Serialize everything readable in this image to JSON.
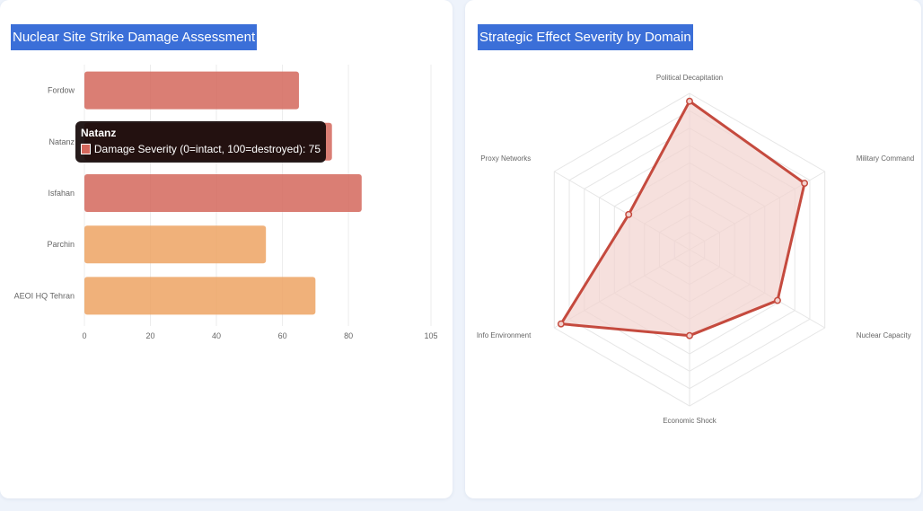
{
  "colors": {
    "page_bg": "#eef3fb",
    "title_bg": "#3b6fd8",
    "bar_red": "#d4675c",
    "bar_orange": "#eda363",
    "radar_line": "#c54a3e",
    "radar_fill": "#f2d3cf",
    "tooltip_bg": "#1a0b0b"
  },
  "charts": {
    "bar": {
      "title": "Nuclear Site Strike Damage Assessment"
    },
    "radar": {
      "title": "Strategic Effect Severity by Domain"
    }
  },
  "tooltip": {
    "title": "Natanz",
    "label": "Damage Severity (0=intact, 100=destroyed): 75"
  },
  "chart_data": [
    {
      "type": "bar",
      "orientation": "horizontal",
      "title": "Nuclear Site Strike Damage Assessment",
      "categories": [
        "Fordow",
        "Natanz",
        "Isfahan",
        "Parchin",
        "AEOI HQ Tehran"
      ],
      "series": [
        {
          "name": "Damage Severity (0=intact, 100=destroyed)",
          "values": [
            65,
            75,
            84,
            55,
            70
          ],
          "colors": [
            "#d4675c",
            "#d4675c",
            "#d4675c",
            "#eda363",
            "#eda363"
          ]
        }
      ],
      "xlim": [
        0,
        105
      ],
      "xticks": [
        0,
        20,
        40,
        60,
        80,
        105
      ],
      "grid": true
    },
    {
      "type": "radar",
      "title": "Strategic Effect Severity by Domain",
      "axes": [
        "Political Decapitation",
        "Military Command",
        "Nuclear Capacity",
        "Economic Shock",
        "Info Environment",
        "Proxy Networks"
      ],
      "values": [
        95,
        85,
        65,
        55,
        95,
        45
      ],
      "range": [
        0,
        100
      ],
      "rings": 9,
      "grid": true
    }
  ]
}
